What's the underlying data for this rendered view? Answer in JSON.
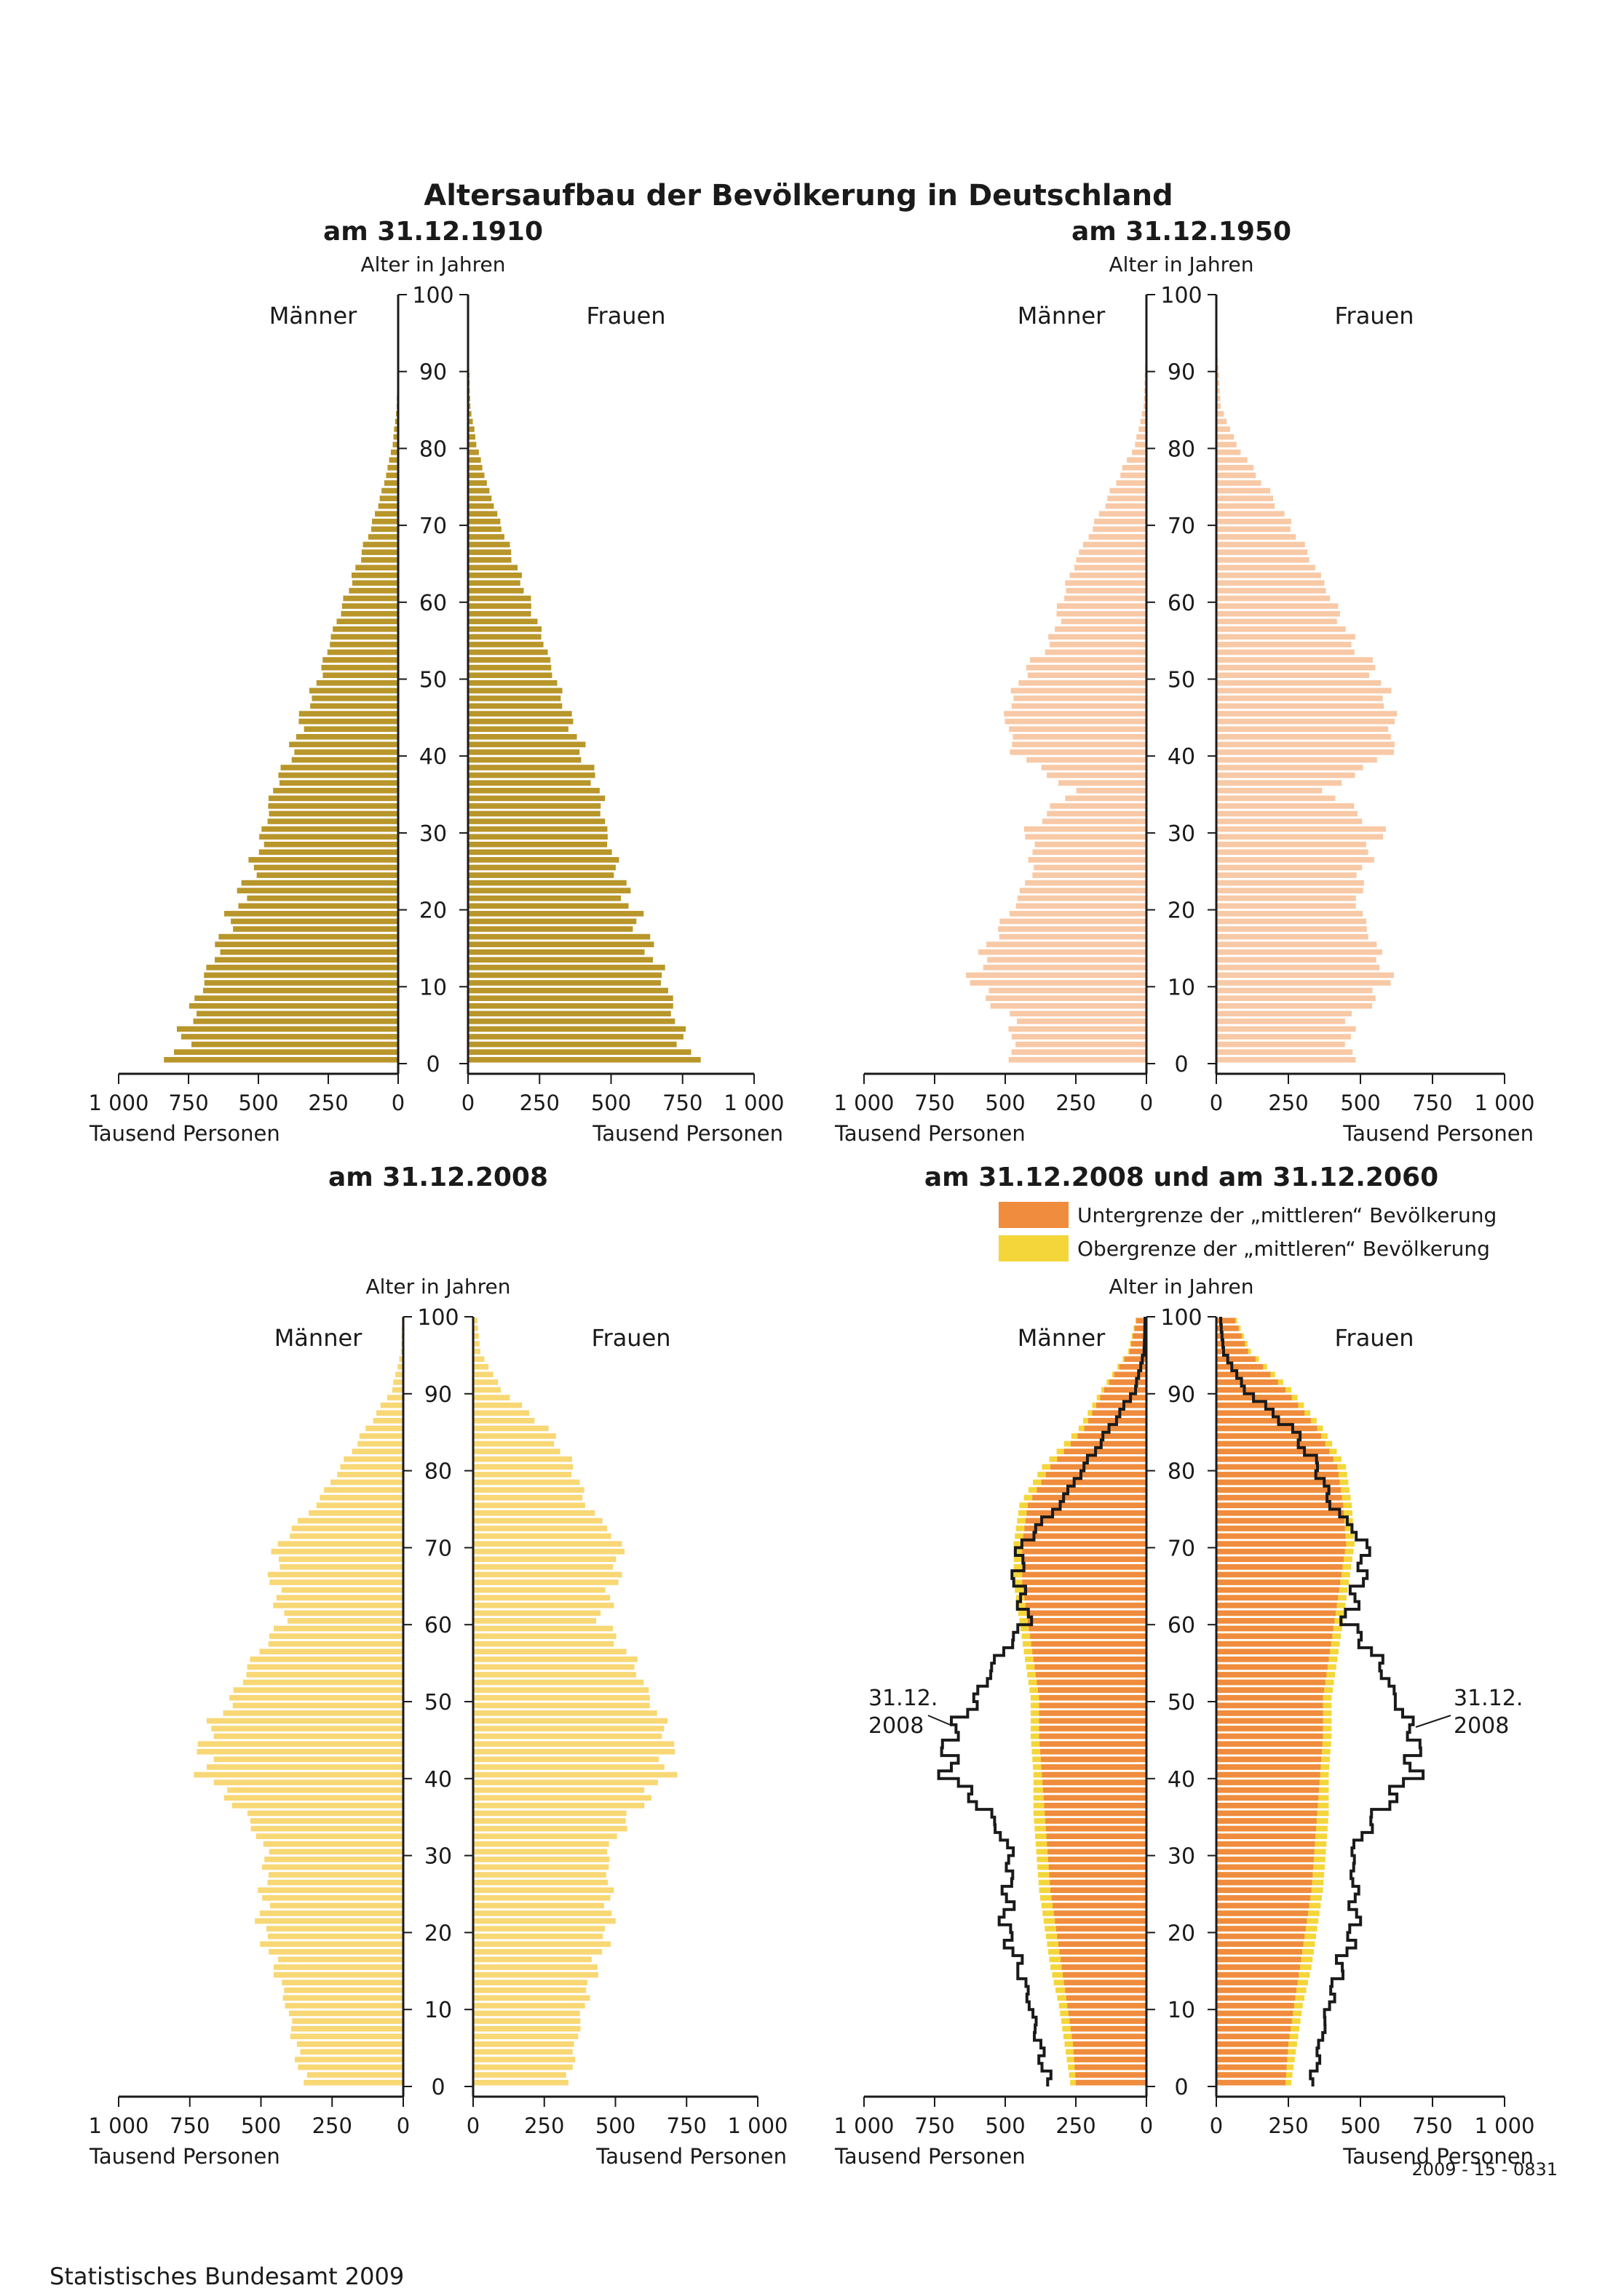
{
  "title": "Altersaufbau der Bevölkerung in Deutschland",
  "source": "Statistisches Bundesamt 2009",
  "code": "2009 - 15 - 0831",
  "labels": {
    "age_axis": "Alter in Jahren",
    "men": "Männer",
    "women": "Frauen",
    "unit": "Tausend Personen"
  },
  "colors": {
    "y1910": "#b8962a",
    "y1950": "#f8c9a6",
    "y2008": "#f8d775",
    "lower": "#f08c3e",
    "upper": "#f4d63a",
    "outline": "#1a1a1a"
  },
  "chart_data": [
    {
      "type": "bar",
      "subtitle": "am 31.12.1910",
      "xlim": [
        0,
        1000
      ],
      "age_range": [
        0,
        100
      ],
      "x_ticks": [
        "1 000",
        "750",
        "500",
        "250",
        "0"
      ],
      "age_ticks": [
        0,
        10,
        20,
        30,
        40,
        50,
        60,
        70,
        80,
        90,
        100
      ],
      "age_groups": [
        0,
        5,
        10,
        15,
        20,
        25,
        30,
        35,
        40,
        45,
        50,
        55,
        60,
        65,
        70,
        75,
        80,
        85
      ],
      "series": [
        {
          "name": "Männer",
          "values": [
            800,
            750,
            700,
            640,
            580,
            520,
            480,
            450,
            380,
            340,
            280,
            240,
            190,
            140,
            90,
            50,
            20,
            5
          ]
        },
        {
          "name": "Frauen",
          "values": [
            780,
            730,
            690,
            630,
            570,
            520,
            480,
            460,
            400,
            350,
            300,
            260,
            210,
            160,
            110,
            65,
            30,
            8
          ]
        }
      ]
    },
    {
      "type": "bar",
      "subtitle": "am 31.12.1950",
      "xlim": [
        0,
        1000
      ],
      "age_range": [
        0,
        100
      ],
      "x_ticks": [
        "1 000",
        "750",
        "500",
        "250",
        "0"
      ],
      "age_ticks": [
        0,
        10,
        20,
        30,
        40,
        50,
        60,
        70,
        80,
        90,
        100
      ],
      "age_groups": [
        0,
        5,
        10,
        15,
        20,
        25,
        30,
        35,
        40,
        45,
        50,
        55,
        60,
        65,
        70,
        75,
        80,
        85
      ],
      "series": [
        {
          "name": "Männer",
          "values": [
            480,
            470,
            620,
            560,
            470,
            400,
            420,
            260,
            470,
            500,
            440,
            330,
            300,
            250,
            180,
            110,
            40,
            10
          ]
        },
        {
          "name": "Frauen",
          "values": [
            470,
            460,
            600,
            550,
            490,
            510,
            570,
            380,
            610,
            610,
            560,
            460,
            400,
            330,
            250,
            160,
            70,
            15
          ]
        }
      ]
    },
    {
      "type": "bar",
      "subtitle": "am 31.12.2008",
      "xlim": [
        0,
        1000
      ],
      "age_range": [
        0,
        100
      ],
      "x_ticks": [
        "1 000",
        "750",
        "500",
        "250",
        "0"
      ],
      "age_ticks": [
        0,
        10,
        20,
        30,
        40,
        50,
        60,
        70,
        80,
        90,
        100
      ],
      "age_groups": [
        0,
        5,
        10,
        15,
        20,
        25,
        30,
        35,
        40,
        45,
        50,
        55,
        60,
        65,
        70,
        75,
        80,
        85,
        90,
        95
      ],
      "series": [
        {
          "name": "Männer",
          "values": [
            350,
            380,
            410,
            450,
            500,
            490,
            480,
            560,
            700,
            700,
            600,
            530,
            420,
            460,
            440,
            310,
            220,
            130,
            40,
            8
          ]
        },
        {
          "name": "Frauen",
          "values": [
            335,
            360,
            390,
            430,
            480,
            480,
            470,
            560,
            680,
            690,
            620,
            560,
            450,
            500,
            520,
            400,
            350,
            260,
            100,
            25
          ]
        }
      ]
    },
    {
      "type": "bar",
      "subtitle": "am 31.12.2008 und am 31.12.2060",
      "legend": [
        {
          "label": "Untergrenze der „mittleren“ Bevölkerung",
          "color_key": "lower"
        },
        {
          "label": "Obergrenze der „mittleren“ Bevölkerung",
          "color_key": "upper"
        }
      ],
      "annotation": [
        "31.12.",
        "2008"
      ],
      "xlim": [
        0,
        1000
      ],
      "age_range": [
        0,
        100
      ],
      "x_ticks": [
        "1 000",
        "750",
        "500",
        "250",
        "0"
      ],
      "age_ticks": [
        0,
        10,
        20,
        30,
        40,
        50,
        60,
        70,
        80,
        90,
        100
      ],
      "age_groups": [
        0,
        5,
        10,
        15,
        20,
        25,
        30,
        35,
        40,
        45,
        50,
        55,
        60,
        65,
        70,
        75,
        80,
        85,
        90,
        95
      ],
      "series": [
        {
          "name": "Männer Untergrenze",
          "values": [
            250,
            260,
            280,
            300,
            320,
            340,
            350,
            360,
            370,
            380,
            380,
            400,
            420,
            440,
            440,
            420,
            340,
            220,
            150,
            60
          ]
        },
        {
          "name": "Männer Obergrenze",
          "values": [
            270,
            290,
            310,
            340,
            360,
            380,
            390,
            400,
            400,
            410,
            410,
            430,
            450,
            470,
            470,
            450,
            370,
            240,
            160,
            65
          ]
        },
        {
          "name": "Frauen Untergrenze",
          "values": [
            240,
            250,
            270,
            290,
            310,
            330,
            340,
            350,
            360,
            370,
            370,
            390,
            410,
            430,
            450,
            440,
            420,
            350,
            240,
            110
          ]
        },
        {
          "name": "Frauen Obergrenze",
          "values": [
            260,
            280,
            300,
            330,
            350,
            370,
            380,
            390,
            390,
            400,
            400,
            420,
            440,
            460,
            480,
            470,
            450,
            370,
            260,
            120
          ]
        },
        {
          "name": "Männer 2008",
          "values": [
            350,
            380,
            410,
            450,
            500,
            490,
            480,
            560,
            700,
            700,
            600,
            530,
            420,
            460,
            440,
            310,
            220,
            130,
            40,
            8
          ]
        },
        {
          "name": "Frauen 2008",
          "values": [
            335,
            360,
            390,
            430,
            480,
            480,
            470,
            560,
            680,
            690,
            620,
            560,
            450,
            500,
            520,
            400,
            350,
            260,
            100,
            25
          ]
        }
      ]
    }
  ]
}
